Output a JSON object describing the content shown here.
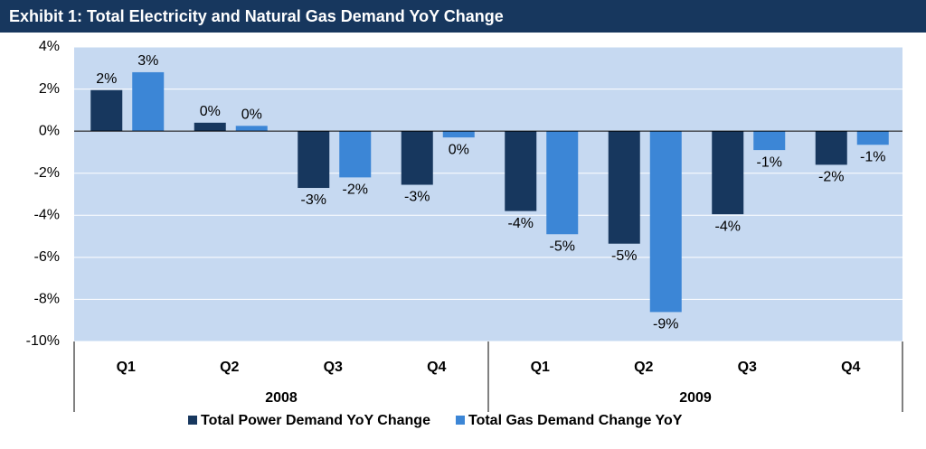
{
  "chart_data": {
    "type": "bar",
    "title": "Exhibit 1:  Total Electricity and Natural Gas Demand YoY Change",
    "categories": [
      "Q1",
      "Q2",
      "Q3",
      "Q4",
      "Q1",
      "Q2",
      "Q3",
      "Q4"
    ],
    "category_groups": [
      "2008",
      "2009"
    ],
    "series": [
      {
        "name": "Total Power Demand YoY Change",
        "color": "#17375e",
        "values": [
          1.95,
          0.4,
          -2.7,
          -2.55,
          -3.8,
          -5.35,
          -3.95,
          -1.6
        ],
        "value_labels": [
          "2%",
          "0%",
          "-3%",
          "-3%",
          "-4%",
          "-5%",
          "-4%",
          "-2%"
        ]
      },
      {
        "name": "Total Gas Demand Change YoY",
        "color": "#3c86d6",
        "values": [
          2.8,
          0.25,
          -2.2,
          -0.3,
          -4.9,
          -8.6,
          -0.9,
          -0.65
        ],
        "value_labels": [
          "3%",
          "0%",
          "-2%",
          "0%",
          "-5%",
          "-9%",
          "-1%",
          "-1%"
        ]
      }
    ],
    "ylim": [
      -10,
      4
    ],
    "yticks": [
      {
        "value": -10,
        "label": "-10%"
      },
      {
        "value": -8,
        "label": "-8%"
      },
      {
        "value": -6,
        "label": "-6%"
      },
      {
        "value": -4,
        "label": "-4%"
      },
      {
        "value": -2,
        "label": "-2%"
      },
      {
        "value": 0,
        "label": "0%"
      },
      {
        "value": 2,
        "label": "2%"
      },
      {
        "value": 4,
        "label": "4%"
      }
    ],
    "grid": true
  }
}
